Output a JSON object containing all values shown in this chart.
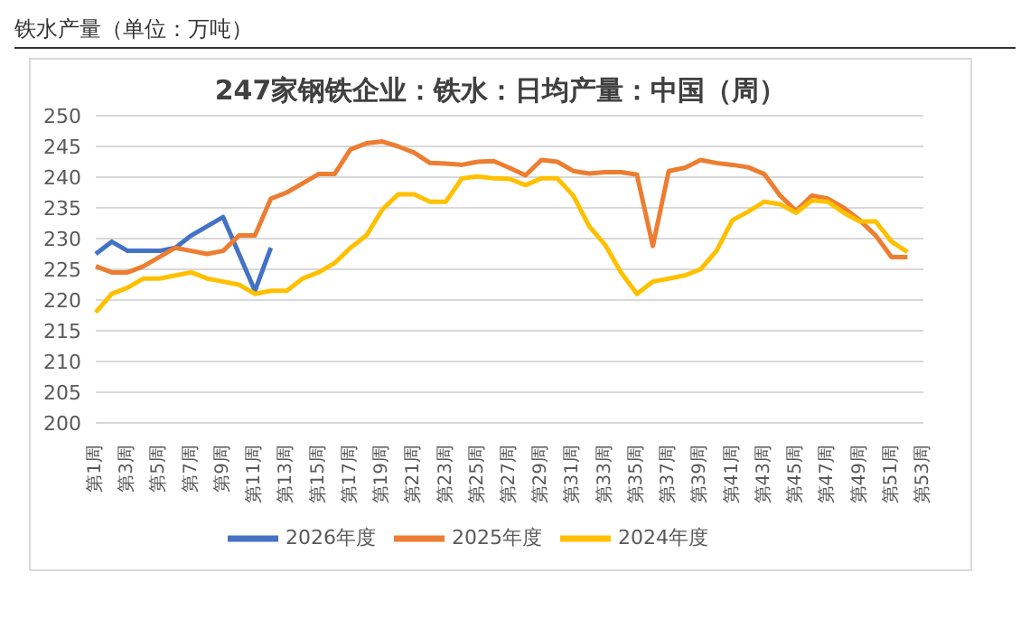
{
  "chart_data": {
    "type": "line",
    "title": "247家钢铁企业：铁水：日均产量：中国（周）",
    "annotations": [
      "铁水产量（单位：万吨）"
    ],
    "categories": [
      "第1周",
      null,
      "第3周",
      null,
      "第5周",
      null,
      "第7周",
      null,
      "第9周",
      null,
      "第11周",
      null,
      "第13周",
      null,
      "第15周",
      null,
      "第17周",
      null,
      "第19周",
      null,
      "第21周",
      null,
      "第23周",
      null,
      "第25周",
      null,
      "第27周",
      null,
      "第29周",
      null,
      "第31周",
      null,
      "第33周",
      null,
      "第35周",
      null,
      "第37周",
      null,
      "第39周",
      null,
      "第41周",
      null,
      "第43周",
      null,
      "第45周",
      null,
      "第47周",
      null,
      "第49周",
      null,
      "第51周",
      null,
      "第53周"
    ],
    "series": [
      {
        "name": "2026年度",
        "color": "#4472c4",
        "values": [
          227.5,
          229.5,
          228,
          228,
          228,
          228.5,
          230.5,
          232,
          233.5,
          227.5,
          221.5,
          228.5,
          null,
          null,
          null,
          null,
          null,
          null,
          null,
          null,
          null,
          null,
          null,
          null,
          null,
          null,
          null,
          null,
          null,
          null,
          null,
          null,
          null,
          null,
          null,
          null,
          null,
          null,
          null,
          null,
          null,
          null,
          null,
          null,
          null,
          null,
          null,
          null,
          null,
          null,
          null,
          null,
          null
        ]
      },
      {
        "name": "2025年度",
        "color": "#ed7d31",
        "values": [
          225.5,
          224.5,
          224.5,
          225.5,
          227,
          228.5,
          228,
          227.5,
          228,
          230.5,
          230.5,
          236.5,
          237.5,
          239,
          240.5,
          240.5,
          244.5,
          245.5,
          245.8,
          245,
          244,
          242.3,
          242.2,
          242,
          242.5,
          242.6,
          241.5,
          240.3,
          242.8,
          242.5,
          241,
          240.6,
          240.8,
          240.8,
          240.4,
          228.8,
          241,
          241.5,
          242.8,
          242.3,
          242,
          241.6,
          240.5,
          237,
          234.5,
          237,
          236.5,
          235,
          233,
          230.5,
          227,
          227,
          null
        ]
      },
      {
        "name": "2024年度",
        "color": "#ffc000",
        "values": [
          218,
          221,
          222,
          223.5,
          223.5,
          224,
          224.5,
          223.5,
          223,
          222.5,
          221,
          221.5,
          221.5,
          223.5,
          224.5,
          226,
          228.5,
          230.5,
          234.7,
          237.2,
          237.2,
          236,
          236,
          239.8,
          240.1,
          239.8,
          239.7,
          238.7,
          239.8,
          239.8,
          237,
          232,
          229,
          224.5,
          221,
          223,
          223.5,
          224,
          225,
          228,
          233,
          234.4,
          236,
          235.6,
          234.2,
          236.2,
          236,
          234.2,
          232.8,
          232.8,
          229.5,
          227.8,
          null
        ]
      }
    ],
    "ylim": [
      200,
      250
    ],
    "yticks": [
      200,
      205,
      210,
      215,
      220,
      225,
      230,
      235,
      240,
      245,
      250
    ],
    "grid": "y",
    "legend": "bottom",
    "marker": "none",
    "line_style": "solid"
  }
}
